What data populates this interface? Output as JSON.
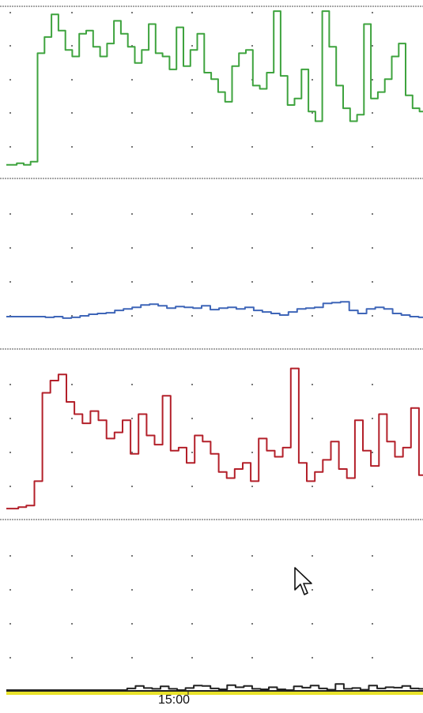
{
  "colors": {
    "green": "#3ea33e",
    "blue": "#3f66b8",
    "red": "#b3202a",
    "black": "#222222",
    "baseline": "#e9e32a",
    "grid_dot": "#777777",
    "divider": "#888888"
  },
  "icons": {
    "cursor": "mouse-pointer-arrow-icon"
  },
  "chart_data": [
    {
      "type": "line",
      "x_tick_labels": [
        "15:00"
      ],
      "x_tick_times_hours": [
        15.0
      ],
      "grid": "dotted",
      "panels": [
        {
          "name": "panel-1",
          "series": [
            {
              "color": "green",
              "values": [
                3,
                3,
                4,
                3,
                5,
                72,
                82,
                96,
                86,
                74,
                70,
                84,
                86,
                76,
                70,
                78,
                92,
                84,
                76,
                66,
                74,
                90,
                72,
                70,
                62,
                88,
                64,
                74,
                84,
                60,
                56,
                48,
                42,
                64,
                72,
                74,
                52,
                50,
                60,
                98,
                58,
                40,
                44,
                62,
                36,
                30,
                98,
                76,
                52,
                38,
                30,
                34,
                90,
                44,
                48,
                56,
                70,
                78,
                46,
                38,
                36
              ]
            }
          ]
        },
        {
          "name": "panel-2",
          "series": [
            {
              "color": "blue",
              "values": [
                48,
                48,
                48,
                48,
                48,
                47,
                48,
                46,
                47,
                49,
                51,
                52,
                53,
                56,
                58,
                60,
                63,
                64,
                62,
                59,
                61,
                60,
                59,
                62,
                57,
                59,
                60,
                58,
                60,
                56,
                54,
                52,
                50,
                54,
                58,
                59,
                60,
                65,
                66,
                67,
                56,
                52,
                58,
                60,
                58,
                52,
                50,
                48,
                47
              ]
            },
            {
              "color": "red",
              "values": [
                2,
                2,
                3,
                4,
                20,
                78,
                86,
                90,
                72,
                64,
                58,
                66,
                60,
                48,
                52,
                60,
                38,
                64,
                50,
                44,
                76,
                40,
                42,
                32,
                50,
                46,
                38,
                26,
                22,
                28,
                32,
                20,
                48,
                40,
                36,
                42,
                94,
                32,
                20,
                26,
                34,
                46,
                28,
                22,
                60,
                40,
                30,
                64,
                46,
                36,
                42,
                68,
                24
              ]
            }
          ]
        },
        {
          "name": "panel-3",
          "series": [
            {
              "color": "black",
              "values": [
                0,
                0,
                0,
                0,
                0,
                0,
                0,
                0,
                0,
                0,
                0,
                0,
                0,
                0,
                0,
                8,
                20,
                10,
                6,
                18,
                6,
                0,
                10,
                22,
                20,
                8,
                4,
                24,
                14,
                20,
                6,
                4,
                14,
                4,
                0,
                18,
                12,
                22,
                8,
                2,
                30,
                6,
                10,
                2,
                22,
                8,
                14,
                12,
                20,
                8,
                6
              ]
            }
          ]
        }
      ]
    }
  ]
}
